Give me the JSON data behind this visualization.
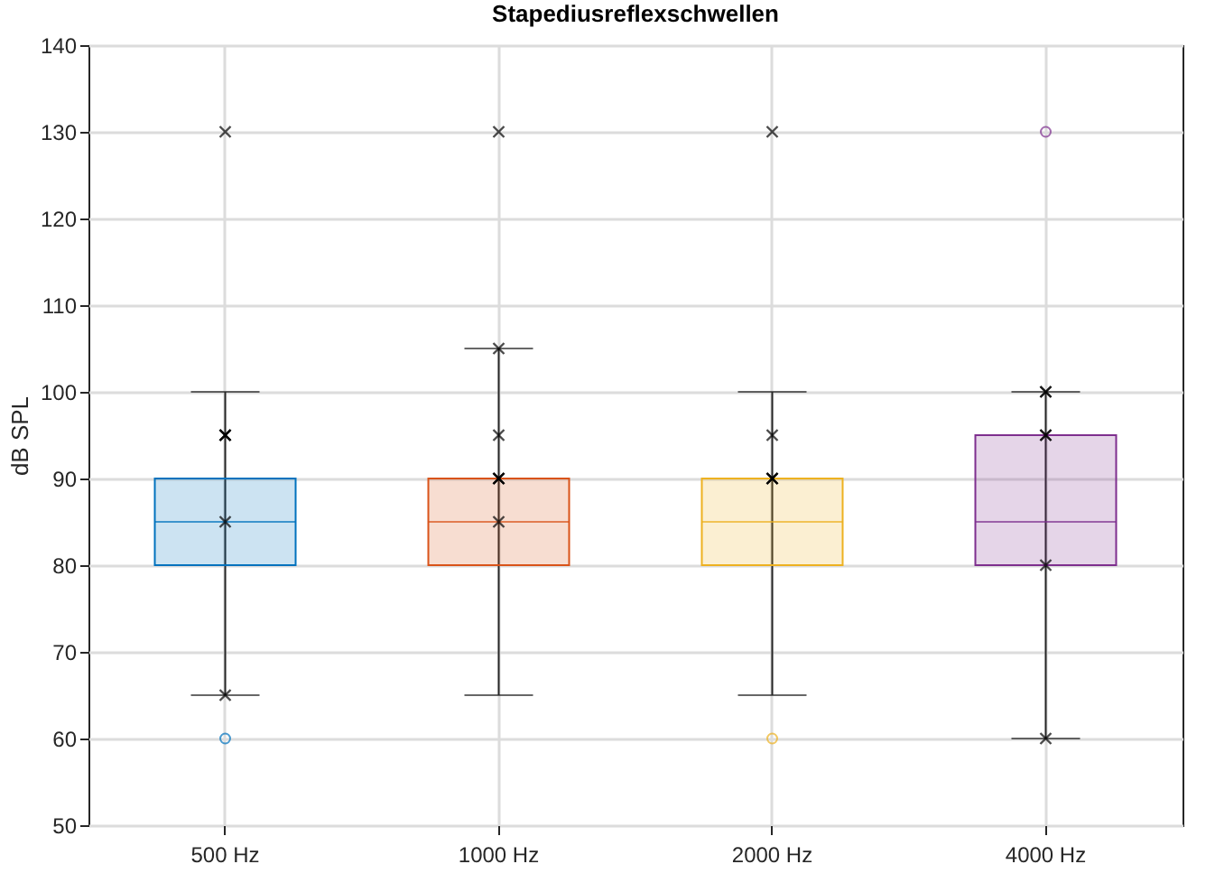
{
  "chart_data": {
    "type": "box",
    "title": "Stapediusreflexschwellen",
    "ylabel": "dB SPL",
    "categories": [
      "500 Hz",
      "1000 Hz",
      "2000 Hz",
      "4000 Hz"
    ],
    "colors": [
      "#0072bd",
      "#d95319",
      "#edb120",
      "#7e2f8e"
    ],
    "boxes": [
      {
        "low": 65,
        "q1": 80,
        "median": 85,
        "q3": 90,
        "high": 100,
        "outliers": [
          60
        ]
      },
      {
        "low": 65,
        "q1": 80,
        "median": 85,
        "q3": 90,
        "high": 105
      },
      {
        "low": 65,
        "q1": 80,
        "median": 85,
        "q3": 90,
        "high": 100,
        "outliers": [
          60
        ]
      },
      {
        "low": 60,
        "q1": 80,
        "median": 85,
        "q3": 95,
        "high": 100,
        "outliers": [
          130
        ]
      }
    ],
    "series": [
      {
        "type": "scatter",
        "color": "#000000",
        "marker": "cross",
        "x": [
          "500 Hz",
          "500 Hz",
          "500 Hz",
          "500 Hz",
          "500 Hz",
          "500 Hz",
          "1000 Hz",
          "1000 Hz",
          "1000 Hz",
          "1000 Hz",
          "1000 Hz",
          "1000 Hz",
          "1000 Hz",
          "2000 Hz",
          "2000 Hz",
          "2000 Hz",
          "2000 Hz",
          "2000 Hz",
          "4000 Hz",
          "4000 Hz",
          "4000 Hz",
          "4000 Hz",
          "4000 Hz",
          "4000 Hz"
        ],
        "values": [
          130,
          95,
          95,
          95,
          85,
          65,
          130,
          105,
          95,
          90,
          90,
          90,
          85,
          130,
          95,
          90,
          90,
          90,
          100,
          100,
          95,
          95,
          80,
          60
        ]
      }
    ],
    "ylim": [
      50,
      140
    ],
    "yticks": [
      50,
      60,
      70,
      80,
      90,
      100,
      110,
      120,
      130,
      140
    ],
    "grid": true
  }
}
